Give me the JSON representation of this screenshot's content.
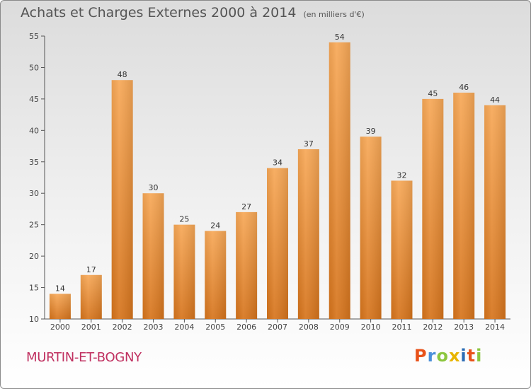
{
  "header": {
    "title": "Achats et Charges Externes 2000 à 2014",
    "subtitle": "(en milliers d'€)"
  },
  "footer": {
    "commune": "MURTIN-ET-BOGNY",
    "logo": "Proxiti"
  },
  "colors": {
    "bar_top": "#f7a857",
    "bar_bottom": "#d6741c",
    "axis": "#555555",
    "commune": "#c03060",
    "logo_letters": [
      "#e8521a",
      "#4a90d9",
      "#8cc63f",
      "#e8b400",
      "#2d6db5",
      "#e8521a",
      "#8cc63f"
    ]
  },
  "chart_data": {
    "type": "bar",
    "categories": [
      "2000",
      "2001",
      "2002",
      "2003",
      "2004",
      "2005",
      "2006",
      "2007",
      "2008",
      "2009",
      "2010",
      "2011",
      "2012",
      "2013",
      "2014"
    ],
    "values": [
      14,
      17,
      48,
      30,
      25,
      24,
      27,
      34,
      37,
      54,
      39,
      32,
      45,
      46,
      44
    ],
    "ylim": [
      10,
      55
    ],
    "yticks": [
      10,
      15,
      20,
      25,
      30,
      35,
      40,
      45,
      50,
      55
    ],
    "grid": false,
    "legend": "none"
  }
}
